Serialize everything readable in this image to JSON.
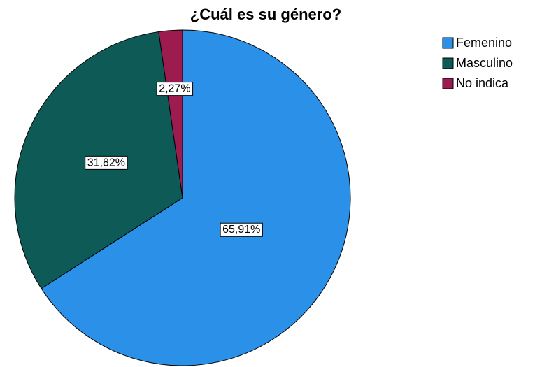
{
  "chart_data": {
    "type": "pie",
    "title": "¿Cuál es su género?",
    "categories": [
      "Femenino",
      "Masculino",
      "No indica"
    ],
    "values": [
      65.91,
      31.82,
      2.27
    ],
    "value_labels": [
      "65,91%",
      "31,82%",
      "2,27%"
    ],
    "colors": [
      "#2b90e8",
      "#0e5a57",
      "#9c1c50"
    ],
    "legend": "top-right"
  }
}
